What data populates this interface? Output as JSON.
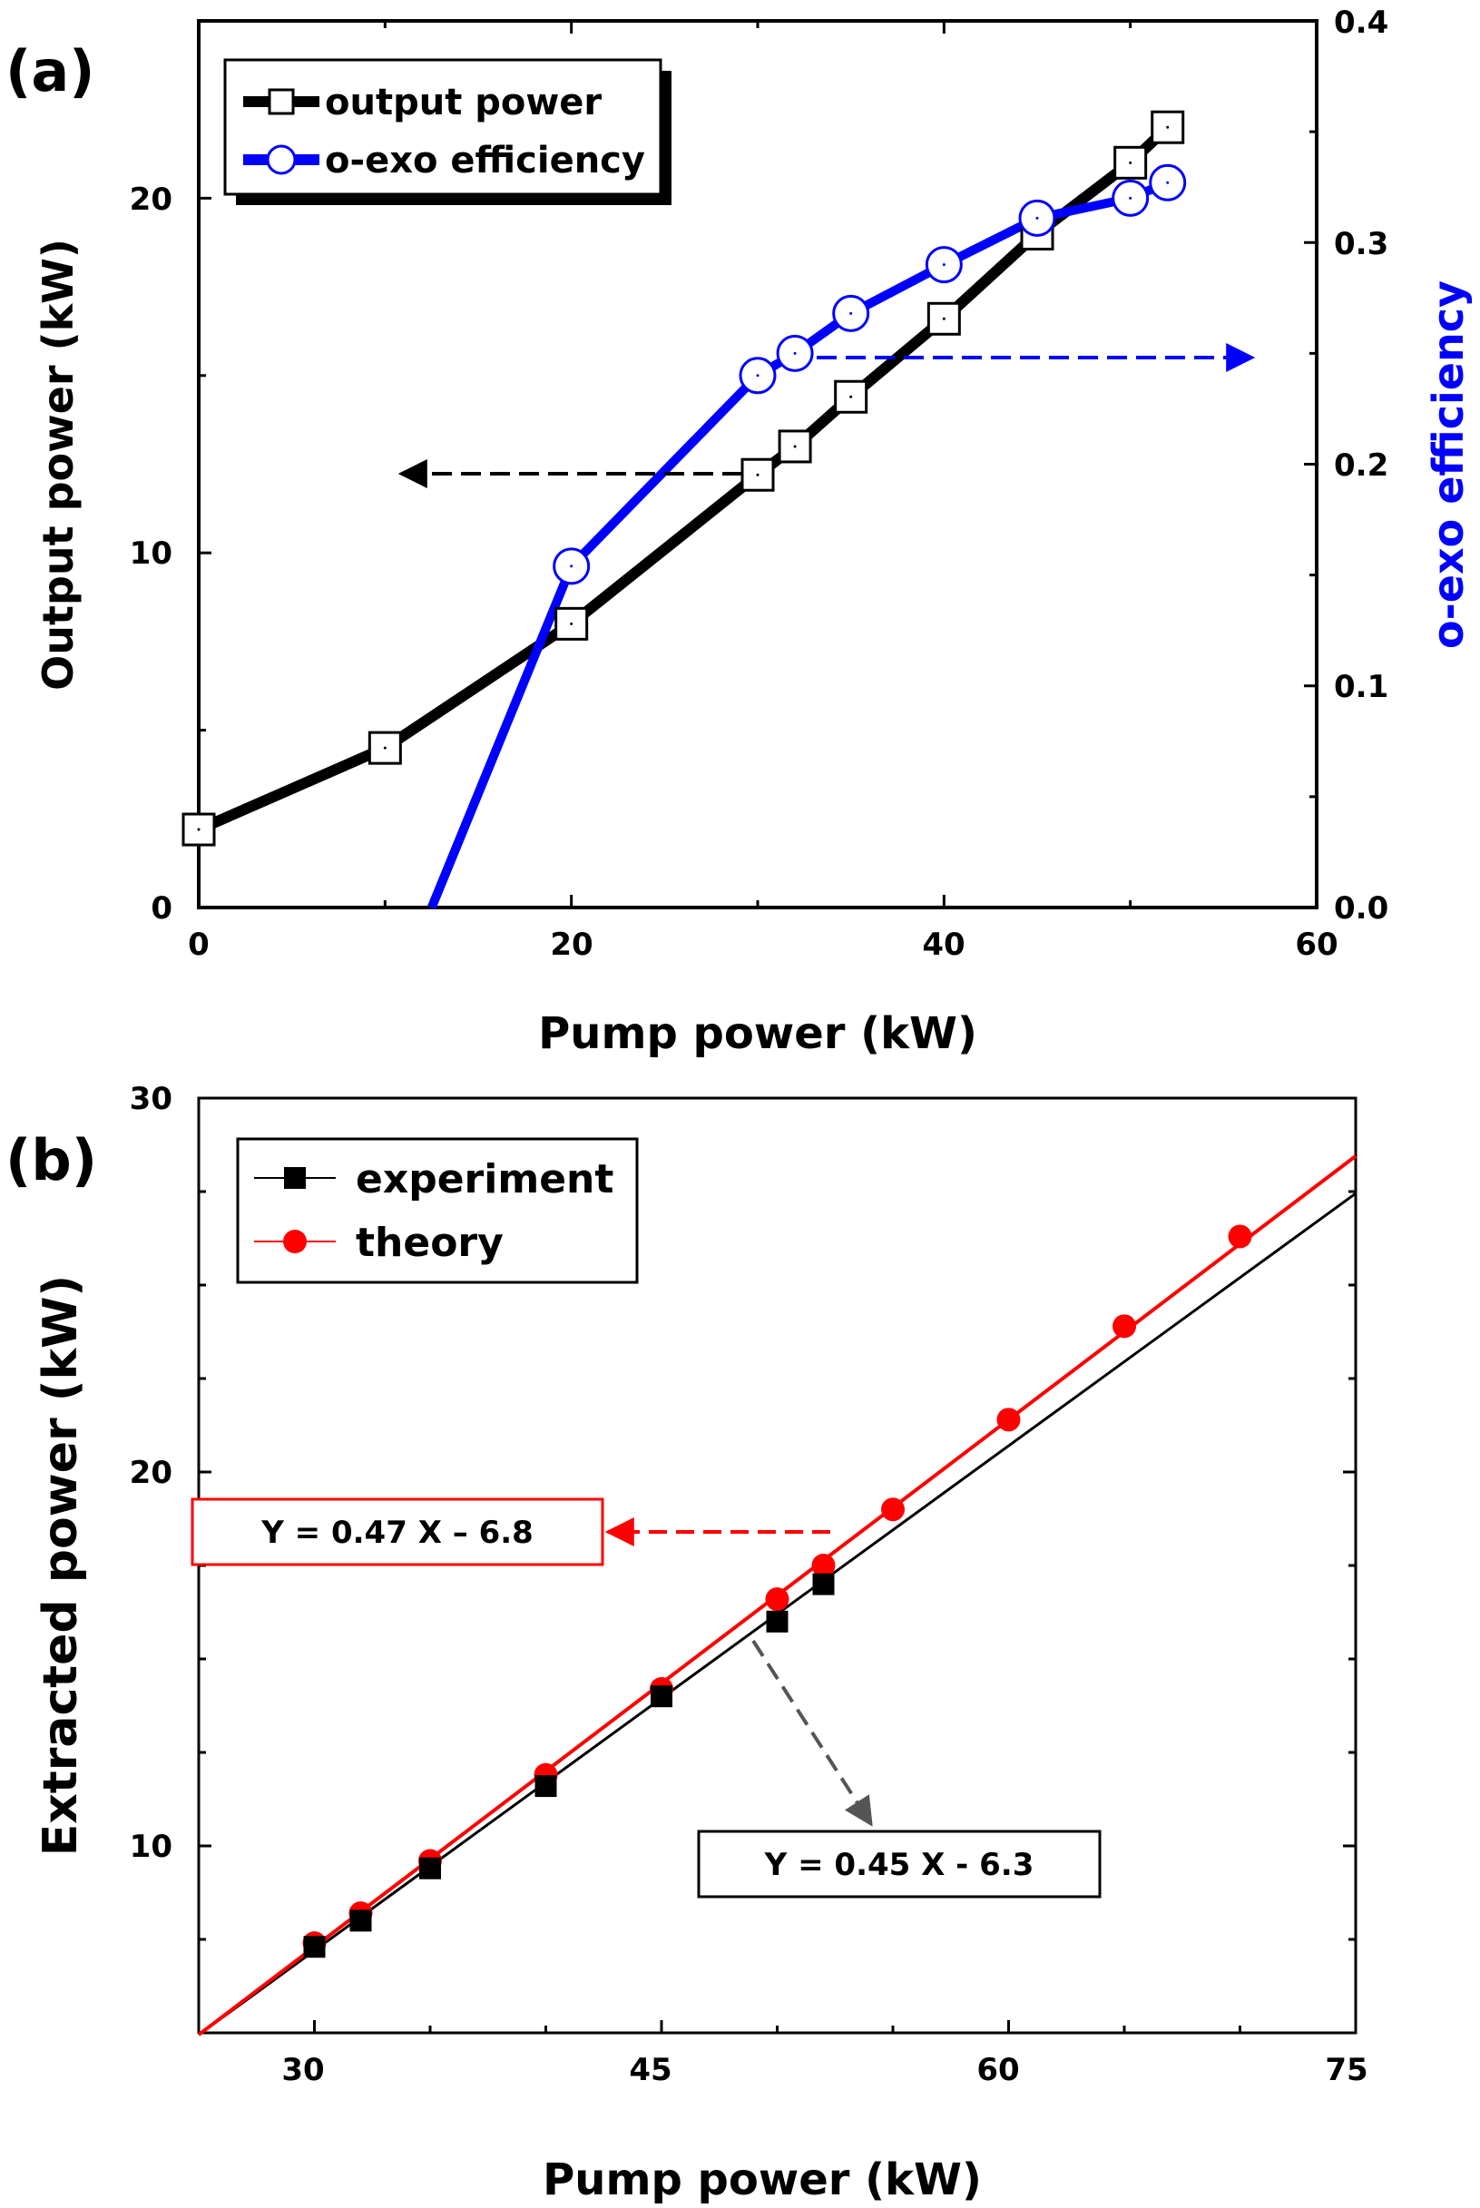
{
  "chart_data": [
    {
      "panel": "(a)",
      "type": "line",
      "xlabel": "Pump power (kW)",
      "ylabel": "Output power (kW)",
      "y2label": "o-exo efficiency",
      "xlim": [
        0,
        60
      ],
      "ylim": [
        0,
        25
      ],
      "y2lim": [
        0,
        0.4
      ],
      "xticks": [
        "0",
        "20",
        "40",
        "60"
      ],
      "yticks": [
        "0",
        "10",
        "20"
      ],
      "y2ticks": [
        "0.0",
        "0.1",
        "0.2",
        "0.3",
        "0.4"
      ],
      "legend": [
        "output power",
        "o-exo efficiency"
      ],
      "series": [
        {
          "name": "output power",
          "axis": "left",
          "color": "#000000",
          "x": [
            0,
            10,
            20,
            30,
            32,
            35,
            40,
            45,
            50,
            52
          ],
          "values": [
            2.2,
            4.5,
            8.0,
            12.2,
            13.0,
            14.4,
            16.6,
            19.0,
            21.0,
            22.0
          ]
        },
        {
          "name": "o-exo efficiency",
          "axis": "right",
          "color": "#0000ff",
          "x": [
            12.5,
            20,
            30,
            32,
            35,
            40,
            45,
            50,
            52
          ],
          "values": [
            0.0,
            0.154,
            0.24,
            0.25,
            0.268,
            0.29,
            0.311,
            0.32,
            0.327
          ]
        }
      ]
    },
    {
      "panel": "(b)",
      "type": "line",
      "xlabel": "Pump power (kW)",
      "ylabel": "Extracted power (kW)",
      "xlim": [
        25,
        75
      ],
      "ylim": [
        5,
        30
      ],
      "xticks": [
        "30",
        "45",
        "60",
        "75"
      ],
      "yticks": [
        "10",
        "20",
        "30"
      ],
      "legend": [
        "experiment",
        "theory"
      ],
      "annotations": [
        "Y = 0.47 X – 6.8",
        "Y = 0.45 X - 6.3"
      ],
      "series": [
        {
          "name": "experiment",
          "color": "#000000",
          "x": [
            30,
            32,
            35,
            40,
            45,
            50,
            52
          ],
          "values": [
            7.3,
            8.0,
            9.4,
            11.6,
            14.0,
            16.0,
            17.0
          ],
          "fit": {
            "slope": 0.45,
            "intercept": -6.3
          }
        },
        {
          "name": "theory",
          "color": "#ff0000",
          "x": [
            30,
            32,
            35,
            40,
            45,
            50,
            52,
            55,
            60,
            65,
            70
          ],
          "values": [
            7.4,
            8.2,
            9.6,
            11.9,
            14.2,
            16.6,
            17.5,
            19.0,
            21.4,
            23.9,
            26.3
          ],
          "fit": {
            "slope": 0.47,
            "intercept": -6.8
          }
        }
      ]
    }
  ]
}
